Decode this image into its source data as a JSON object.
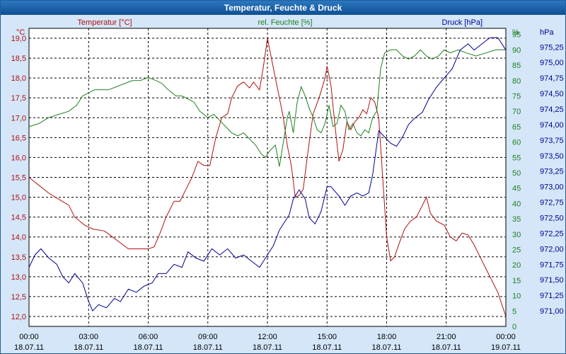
{
  "chart_data": {
    "type": "line",
    "title": "Temperatur, Feuchte & Druck",
    "x": {
      "tick_labels_time": [
        "00:00",
        "03:00",
        "06:00",
        "09:00",
        "12:00",
        "15:00",
        "18:00",
        "21:00",
        "00:00"
      ],
      "tick_labels_date": [
        "18.07.11",
        "18.07.11",
        "18.07.11",
        "18.07.11",
        "18.07.11",
        "18.07.11",
        "18.07.11",
        "18.07.11",
        "19.07.11"
      ],
      "range_hours": [
        0,
        24
      ]
    },
    "axes": {
      "temperature": {
        "unit": "°C",
        "label": "Temperatur [°C]",
        "range": [
          11.75,
          19.25
        ],
        "ticks": [
          "12,0",
          "12,5",
          "13,0",
          "13,5",
          "14,0",
          "14,5",
          "15,0",
          "15,5",
          "16,0",
          "16,5",
          "17,0",
          "17,5",
          "18,0",
          "18,5",
          "19,0"
        ]
      },
      "humidity": {
        "unit": "%",
        "label": "rel. Feuchte [%]",
        "range": [
          0,
          97
        ],
        "ticks": [
          "0",
          "5",
          "10",
          "15",
          "20",
          "25",
          "30",
          "35",
          "40",
          "45",
          "50",
          "55",
          "60",
          "65",
          "70",
          "75",
          "80",
          "85",
          "90",
          "95"
        ]
      },
      "pressure": {
        "unit": "hPa",
        "label": "Druck [hPa]",
        "range": [
          970.75,
          975.55
        ],
        "ticks": [
          "971,00",
          "971,25",
          "971,50",
          "971,75",
          "972,00",
          "972,25",
          "972,50",
          "972,75",
          "973,00",
          "973,25",
          "973,50",
          "973,75",
          "974,00",
          "974,25",
          "974,50",
          "974,75",
          "975,00",
          "975,25"
        ]
      }
    },
    "series": [
      {
        "name": "Temperatur",
        "axis": "temperature",
        "color": "#b01010",
        "points": [
          [
            0,
            15.5
          ],
          [
            0.5,
            15.3
          ],
          [
            1,
            15.1
          ],
          [
            1.5,
            14.95
          ],
          [
            2,
            14.8
          ],
          [
            2.3,
            14.5
          ],
          [
            2.8,
            14.3
          ],
          [
            3.2,
            14.2
          ],
          [
            3.8,
            14.15
          ],
          [
            4.2,
            14.0
          ],
          [
            4.6,
            13.85
          ],
          [
            5,
            13.7
          ],
          [
            5.5,
            13.7
          ],
          [
            6,
            13.7
          ],
          [
            6.3,
            13.75
          ],
          [
            6.6,
            14.1
          ],
          [
            6.9,
            14.5
          ],
          [
            7.3,
            14.9
          ],
          [
            7.6,
            14.9
          ],
          [
            7.9,
            15.2
          ],
          [
            8.2,
            15.5
          ],
          [
            8.5,
            15.9
          ],
          [
            8.8,
            15.8
          ],
          [
            9.1,
            15.8
          ],
          [
            9.4,
            16.5
          ],
          [
            9.7,
            17.0
          ],
          [
            10,
            17.1
          ],
          [
            10.2,
            17.5
          ],
          [
            10.5,
            17.8
          ],
          [
            10.8,
            17.9
          ],
          [
            11.1,
            17.75
          ],
          [
            11.3,
            17.9
          ],
          [
            11.6,
            17.7
          ],
          [
            11.8,
            18.3
          ],
          [
            12.0,
            19.0
          ],
          [
            12.2,
            18.5
          ],
          [
            12.4,
            18.0
          ],
          [
            12.6,
            17.5
          ],
          [
            12.8,
            17.0
          ],
          [
            13,
            16.3
          ],
          [
            13.2,
            15.8
          ],
          [
            13.4,
            15.0
          ],
          [
            13.6,
            15.05
          ],
          [
            13.8,
            15.2
          ],
          [
            14.0,
            16.0
          ],
          [
            14.3,
            17.1
          ],
          [
            14.6,
            17.5
          ],
          [
            14.9,
            18.0
          ],
          [
            15.0,
            18.3
          ],
          [
            15.2,
            17.8
          ],
          [
            15.4,
            16.8
          ],
          [
            15.6,
            15.9
          ],
          [
            15.8,
            16.2
          ],
          [
            16.0,
            16.9
          ],
          [
            16.2,
            16.7
          ],
          [
            16.4,
            16.9
          ],
          [
            16.6,
            17.0
          ],
          [
            16.8,
            17.2
          ],
          [
            17.0,
            17.1
          ],
          [
            17.2,
            17.5
          ],
          [
            17.4,
            17.4
          ],
          [
            17.6,
            17.0
          ],
          [
            17.8,
            15.5
          ],
          [
            18.0,
            14.0
          ],
          [
            18.2,
            13.4
          ],
          [
            18.4,
            13.5
          ],
          [
            18.6,
            13.8
          ],
          [
            18.9,
            14.2
          ],
          [
            19.2,
            14.4
          ],
          [
            19.5,
            14.5
          ],
          [
            19.8,
            14.8
          ],
          [
            20.0,
            15.0
          ],
          [
            20.2,
            14.6
          ],
          [
            20.5,
            14.4
          ],
          [
            20.9,
            14.3
          ],
          [
            21.2,
            14.0
          ],
          [
            21.5,
            13.9
          ],
          [
            21.8,
            14.1
          ],
          [
            22.1,
            14.05
          ],
          [
            22.4,
            13.8
          ],
          [
            22.7,
            13.5
          ],
          [
            23.0,
            13.2
          ],
          [
            23.3,
            12.9
          ],
          [
            23.6,
            12.6
          ],
          [
            23.8,
            12.3
          ],
          [
            24,
            12.0
          ]
        ]
      },
      {
        "name": "rel. Feuchte",
        "axis": "humidity",
        "color": "#208020",
        "points": [
          [
            0,
            65
          ],
          [
            0.5,
            66
          ],
          [
            1,
            68
          ],
          [
            1.5,
            69
          ],
          [
            2,
            70
          ],
          [
            2.4,
            72
          ],
          [
            2.7,
            75
          ],
          [
            3,
            76
          ],
          [
            3.3,
            77
          ],
          [
            4,
            77
          ],
          [
            4.4,
            78
          ],
          [
            4.8,
            79
          ],
          [
            5.2,
            80
          ],
          [
            5.6,
            80
          ],
          [
            6,
            81
          ],
          [
            6.4,
            80
          ],
          [
            6.7,
            79
          ],
          [
            7,
            77
          ],
          [
            7.4,
            75
          ],
          [
            7.7,
            75
          ],
          [
            8,
            74
          ],
          [
            8.3,
            73
          ],
          [
            8.6,
            70
          ],
          [
            9.0,
            68
          ],
          [
            9.3,
            69
          ],
          [
            9.6,
            67
          ],
          [
            9.9,
            65
          ],
          [
            10.2,
            63
          ],
          [
            10.5,
            62
          ],
          [
            10.8,
            63
          ],
          [
            11.1,
            61
          ],
          [
            11.4,
            59
          ],
          [
            11.7,
            56
          ],
          [
            11.9,
            55
          ],
          [
            12.1,
            57
          ],
          [
            12.4,
            59
          ],
          [
            12.6,
            52
          ],
          [
            12.8,
            60
          ],
          [
            13.0,
            68
          ],
          [
            13.1,
            70
          ],
          [
            13.3,
            63
          ],
          [
            13.5,
            73
          ],
          [
            13.7,
            78
          ],
          [
            13.9,
            75
          ],
          [
            14.1,
            71
          ],
          [
            14.3,
            68
          ],
          [
            14.5,
            64
          ],
          [
            14.7,
            63
          ],
          [
            14.9,
            66
          ],
          [
            15.1,
            72
          ],
          [
            15.3,
            65
          ],
          [
            15.5,
            66
          ],
          [
            15.7,
            72
          ],
          [
            15.9,
            70
          ],
          [
            16.1,
            64
          ],
          [
            16.3,
            66
          ],
          [
            16.5,
            63
          ],
          [
            16.7,
            62
          ],
          [
            16.9,
            64
          ],
          [
            17.1,
            63
          ],
          [
            17.3,
            68
          ],
          [
            17.5,
            70
          ],
          [
            17.7,
            84
          ],
          [
            17.9,
            89
          ],
          [
            18.2,
            90
          ],
          [
            18.5,
            90
          ],
          [
            18.8,
            88
          ],
          [
            19.1,
            87
          ],
          [
            19.4,
            88
          ],
          [
            19.7,
            90
          ],
          [
            20.0,
            88
          ],
          [
            20.3,
            87
          ],
          [
            20.6,
            88
          ],
          [
            20.9,
            90
          ],
          [
            21.2,
            89
          ],
          [
            21.6,
            90
          ],
          [
            22,
            89
          ],
          [
            22.5,
            88
          ],
          [
            23,
            89
          ],
          [
            23.5,
            90
          ],
          [
            24,
            90
          ]
        ]
      },
      {
        "name": "Druck",
        "axis": "pressure",
        "color": "#000090",
        "points": [
          [
            0,
            971.7
          ],
          [
            0.3,
            971.9
          ],
          [
            0.6,
            972.0
          ],
          [
            1,
            971.85
          ],
          [
            1.4,
            971.75
          ],
          [
            1.7,
            971.55
          ],
          [
            2,
            971.45
          ],
          [
            2.3,
            971.6
          ],
          [
            2.7,
            971.45
          ],
          [
            3.0,
            971.15
          ],
          [
            3.2,
            971.0
          ],
          [
            3.5,
            971.1
          ],
          [
            3.9,
            971.05
          ],
          [
            4.3,
            971.2
          ],
          [
            4.6,
            971.15
          ],
          [
            5,
            971.35
          ],
          [
            5.4,
            971.3
          ],
          [
            5.8,
            971.4
          ],
          [
            6.2,
            971.45
          ],
          [
            6.5,
            971.6
          ],
          [
            6.9,
            971.6
          ],
          [
            7.3,
            971.75
          ],
          [
            7.7,
            971.7
          ],
          [
            8.0,
            971.95
          ],
          [
            8.4,
            971.85
          ],
          [
            8.8,
            971.8
          ],
          [
            9.2,
            972.0
          ],
          [
            9.6,
            971.9
          ],
          [
            10.0,
            972.0
          ],
          [
            10.4,
            971.85
          ],
          [
            10.8,
            971.9
          ],
          [
            11.2,
            971.8
          ],
          [
            11.6,
            971.7
          ],
          [
            12.0,
            971.9
          ],
          [
            12.3,
            972.05
          ],
          [
            12.6,
            972.3
          ],
          [
            12.9,
            972.45
          ],
          [
            13.1,
            972.55
          ],
          [
            13.3,
            972.8
          ],
          [
            13.6,
            972.95
          ],
          [
            13.9,
            972.8
          ],
          [
            14.1,
            972.5
          ],
          [
            14.4,
            972.4
          ],
          [
            14.7,
            972.6
          ],
          [
            15.0,
            973.0
          ],
          [
            15.2,
            973.0
          ],
          [
            15.6,
            972.85
          ],
          [
            15.9,
            972.7
          ],
          [
            16.2,
            972.85
          ],
          [
            16.5,
            972.9
          ],
          [
            16.8,
            972.85
          ],
          [
            17.1,
            972.9
          ],
          [
            17.3,
            973.2
          ],
          [
            17.6,
            973.9
          ],
          [
            17.9,
            973.8
          ],
          [
            18.2,
            973.7
          ],
          [
            18.5,
            973.65
          ],
          [
            18.8,
            973.8
          ],
          [
            19.1,
            974.0
          ],
          [
            19.4,
            974.1
          ],
          [
            19.8,
            974.2
          ],
          [
            20.1,
            974.4
          ],
          [
            20.5,
            974.6
          ],
          [
            20.9,
            974.75
          ],
          [
            21.3,
            974.9
          ],
          [
            21.7,
            975.2
          ],
          [
            22.1,
            975.3
          ],
          [
            22.4,
            975.2
          ],
          [
            22.8,
            975.3
          ],
          [
            23.2,
            975.4
          ],
          [
            23.6,
            975.4
          ],
          [
            24,
            975.2
          ]
        ]
      }
    ]
  }
}
